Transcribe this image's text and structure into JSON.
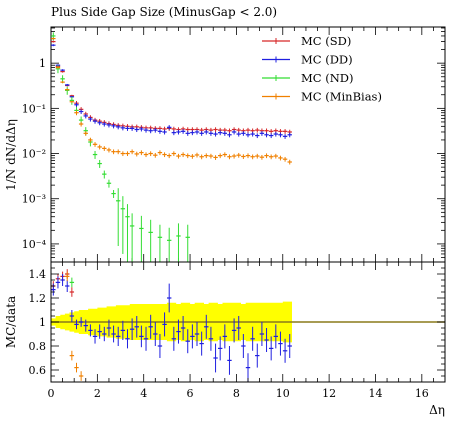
{
  "chart_data": [
    {
      "type": "scatter",
      "title": "Plus Side Gap Size (MinusGap < 2.0)",
      "ylabel": "1/N dN/dΔη",
      "xlim": [
        0,
        17
      ],
      "ylim_log10": [
        -4.4,
        0.8
      ],
      "yscale": "log",
      "yticks": [
        {
          "value": 1,
          "label": "1"
        },
        {
          "value": 0.1,
          "label": "10⁻¹"
        },
        {
          "value": 0.01,
          "label": "10⁻²"
        },
        {
          "value": 0.001,
          "label": "10⁻³"
        },
        {
          "value": 0.0001,
          "label": "10⁻⁴"
        }
      ],
      "legend_position": "top-right",
      "series": [
        {
          "name": "MC (SD)",
          "color": "#d62728",
          "x": [
            0.1,
            0.3,
            0.5,
            0.7,
            0.9,
            1.1,
            1.3,
            1.5,
            1.7,
            1.9,
            2.1,
            2.3,
            2.5,
            2.7,
            2.9,
            3.1,
            3.3,
            3.5,
            3.7,
            3.9,
            4.1,
            4.3,
            4.5,
            4.7,
            4.9,
            5.1,
            5.3,
            5.5,
            5.7,
            5.9,
            6.1,
            6.3,
            6.5,
            6.7,
            6.9,
            7.1,
            7.3,
            7.5,
            7.7,
            7.9,
            8.1,
            8.3,
            8.5,
            8.7,
            8.9,
            9.1,
            9.3,
            9.5,
            9.7,
            9.9,
            10.1,
            10.3
          ],
          "y": [
            3.0,
            0.85,
            0.65,
            0.32,
            0.19,
            0.13,
            0.095,
            0.075,
            0.063,
            0.055,
            0.052,
            0.049,
            0.046,
            0.044,
            0.042,
            0.041,
            0.04,
            0.039,
            0.039,
            0.038,
            0.037,
            0.037,
            0.036,
            0.036,
            0.035,
            0.036,
            0.035,
            0.034,
            0.035,
            0.034,
            0.034,
            0.034,
            0.033,
            0.034,
            0.033,
            0.034,
            0.033,
            0.033,
            0.032,
            0.034,
            0.033,
            0.032,
            0.033,
            0.032,
            0.033,
            0.032,
            0.032,
            0.031,
            0.032,
            0.031,
            0.031,
            0.03
          ]
        },
        {
          "name": "MC (DD)",
          "color": "#1f1fe0",
          "x": [
            0.1,
            0.3,
            0.5,
            0.7,
            0.9,
            1.1,
            1.3,
            1.5,
            1.7,
            1.9,
            2.1,
            2.3,
            2.5,
            2.7,
            2.9,
            3.1,
            3.3,
            3.5,
            3.7,
            3.9,
            4.1,
            4.3,
            4.5,
            4.7,
            4.9,
            5.1,
            5.3,
            5.5,
            5.7,
            5.9,
            6.1,
            6.3,
            6.5,
            6.7,
            6.9,
            7.1,
            7.3,
            7.5,
            7.7,
            7.9,
            8.1,
            8.3,
            8.5,
            8.7,
            8.9,
            9.1,
            9.3,
            9.5,
            9.7,
            9.9,
            10.1,
            10.3
          ],
          "y": [
            2.5,
            0.9,
            0.7,
            0.33,
            0.18,
            0.12,
            0.085,
            0.068,
            0.058,
            0.052,
            0.048,
            0.045,
            0.043,
            0.041,
            0.039,
            0.037,
            0.036,
            0.036,
            0.034,
            0.035,
            0.033,
            0.032,
            0.033,
            0.031,
            0.03,
            0.038,
            0.029,
            0.03,
            0.031,
            0.028,
            0.029,
            0.03,
            0.028,
            0.03,
            0.028,
            0.027,
            0.029,
            0.028,
            0.026,
            0.03,
            0.027,
            0.028,
            0.026,
            0.027,
            0.025,
            0.028,
            0.026,
            0.025,
            0.027,
            0.026,
            0.024,
            0.026
          ]
        },
        {
          "name": "MC (ND)",
          "color": "#33dd33",
          "x": [
            0.1,
            0.3,
            0.5,
            0.7,
            0.9,
            1.1,
            1.3,
            1.5,
            1.7,
            1.9,
            2.1,
            2.3,
            2.5,
            2.7,
            2.9,
            3.1,
            3.3,
            3.5,
            3.9,
            4.3,
            4.7,
            5.1,
            5.5,
            5.9
          ],
          "y": [
            4.0,
            0.75,
            0.45,
            0.25,
            0.15,
            0.09,
            0.055,
            0.032,
            0.018,
            0.0095,
            0.006,
            0.0035,
            0.0022,
            0.0013,
            0.0009,
            0.0006,
            0.0004,
            0.00025,
            0.00022,
            0.00018,
            0.00014,
            0.00012,
            0.00015,
            0.00014
          ]
        },
        {
          "name": "MC (MinBias)",
          "color": "#f08000",
          "x": [
            0.1,
            0.3,
            0.5,
            0.7,
            0.9,
            1.1,
            1.3,
            1.5,
            1.7,
            1.9,
            2.1,
            2.3,
            2.5,
            2.7,
            2.9,
            3.1,
            3.3,
            3.5,
            3.7,
            3.9,
            4.1,
            4.3,
            4.5,
            4.7,
            4.9,
            5.1,
            5.3,
            5.5,
            5.7,
            5.9,
            6.1,
            6.3,
            6.5,
            6.7,
            6.9,
            7.1,
            7.3,
            7.5,
            7.7,
            7.9,
            8.1,
            8.3,
            8.5,
            8.7,
            8.9,
            9.1,
            9.3,
            9.5,
            9.7,
            9.9,
            10.1,
            10.3
          ],
          "y": [
            3.5,
            0.8,
            0.38,
            0.26,
            0.14,
            0.08,
            0.045,
            0.028,
            0.02,
            0.016,
            0.014,
            0.013,
            0.012,
            0.011,
            0.011,
            0.01,
            0.01,
            0.011,
            0.0098,
            0.0105,
            0.0095,
            0.01,
            0.0092,
            0.0105,
            0.0095,
            0.009,
            0.01,
            0.0088,
            0.0095,
            0.009,
            0.0087,
            0.0093,
            0.0085,
            0.009,
            0.0088,
            0.0082,
            0.009,
            0.0095,
            0.0085,
            0.0088,
            0.0092,
            0.0086,
            0.009,
            0.0085,
            0.0088,
            0.0083,
            0.009,
            0.0085,
            0.0088,
            0.008,
            0.0075,
            0.0065
          ]
        }
      ]
    },
    {
      "type": "scatter",
      "ylabel": "MC/data",
      "xlabel": "Δη",
      "xlim": [
        0,
        17
      ],
      "ylim": [
        0.5,
        1.5
      ],
      "xticks": [
        0,
        2,
        4,
        6,
        8,
        10,
        12,
        14,
        16
      ],
      "yticks": [
        0.6,
        0.8,
        1,
        1.2,
        1.4
      ],
      "reference_line": 1,
      "band": {
        "color": "#ffff00",
        "x": [
          0.1,
          0.3,
          0.5,
          0.7,
          0.9,
          1.1,
          1.3,
          1.5,
          1.7,
          1.9,
          2.1,
          2.3,
          2.5,
          2.7,
          2.9,
          3.1,
          3.3,
          3.5,
          3.7,
          3.9,
          4.1,
          4.3,
          4.5,
          4.7,
          4.9,
          5.1,
          5.3,
          5.5,
          5.7,
          5.9,
          6.1,
          6.3,
          6.5,
          6.7,
          6.9,
          7.1,
          7.3,
          7.5,
          7.7,
          7.9,
          8.1,
          8.3,
          8.5,
          8.7,
          8.9,
          9.1,
          9.3,
          9.5,
          9.7,
          9.9,
          10.1,
          10.3
        ],
        "halfwidth": [
          0.03,
          0.05,
          0.06,
          0.07,
          0.08,
          0.09,
          0.1,
          0.1,
          0.11,
          0.11,
          0.12,
          0.12,
          0.13,
          0.13,
          0.14,
          0.14,
          0.14,
          0.15,
          0.15,
          0.15,
          0.15,
          0.15,
          0.15,
          0.15,
          0.15,
          0.16,
          0.16,
          0.15,
          0.16,
          0.16,
          0.15,
          0.16,
          0.16,
          0.15,
          0.16,
          0.16,
          0.15,
          0.16,
          0.16,
          0.16,
          0.16,
          0.15,
          0.16,
          0.16,
          0.16,
          0.16,
          0.16,
          0.16,
          0.16,
          0.16,
          0.17,
          0.17
        ]
      },
      "series": [
        {
          "name": "MC (SD)",
          "color": "#d62728",
          "x": [
            0.1,
            0.3,
            0.5,
            0.7,
            0.9
          ],
          "y": [
            1.3,
            1.36,
            1.38,
            1.4,
            1.25
          ]
        },
        {
          "name": "MC (DD)",
          "color": "#1f1fe0",
          "x": [
            0.1,
            0.3,
            0.5,
            0.7,
            0.9,
            1.1,
            1.3,
            1.5,
            1.7,
            1.9,
            2.1,
            2.3,
            2.5,
            2.7,
            2.9,
            3.1,
            3.3,
            3.5,
            3.7,
            3.9,
            4.1,
            4.3,
            4.5,
            4.7,
            4.9,
            5.1,
            5.3,
            5.5,
            5.7,
            5.9,
            6.1,
            6.3,
            6.5,
            6.7,
            6.9,
            7.1,
            7.3,
            7.5,
            7.7,
            7.9,
            8.1,
            8.3,
            8.5,
            8.7,
            8.9,
            9.1,
            9.3,
            9.5,
            9.7,
            9.9,
            10.1,
            10.3
          ],
          "y": [
            1.27,
            1.33,
            1.35,
            1.3,
            1.05,
            0.98,
            1.0,
            0.97,
            0.93,
            0.88,
            0.92,
            0.9,
            0.95,
            0.9,
            0.88,
            0.93,
            0.86,
            0.94,
            0.96,
            0.88,
            0.86,
            0.96,
            0.9,
            0.8,
            0.98,
            1.2,
            0.86,
            0.92,
            0.95,
            0.84,
            0.88,
            0.9,
            0.82,
            0.96,
            0.86,
            0.7,
            0.78,
            0.88,
            0.68,
            0.93,
            0.95,
            0.8,
            0.62,
            0.86,
            0.72,
            0.9,
            0.85,
            0.78,
            0.88,
            0.82,
            0.76,
            0.8
          ],
          "err": [
            0.05,
            0.05,
            0.05,
            0.05,
            0.05,
            0.04,
            0.04,
            0.05,
            0.05,
            0.06,
            0.06,
            0.06,
            0.07,
            0.07,
            0.08,
            0.08,
            0.08,
            0.09,
            0.09,
            0.09,
            0.1,
            0.1,
            0.1,
            0.1,
            0.1,
            0.12,
            0.1,
            0.1,
            0.1,
            0.1,
            0.1,
            0.1,
            0.1,
            0.1,
            0.1,
            0.12,
            0.1,
            0.1,
            0.12,
            0.1,
            0.1,
            0.1,
            0.12,
            0.1,
            0.1,
            0.1,
            0.1,
            0.1,
            0.1,
            0.1,
            0.1,
            0.1
          ]
        },
        {
          "name": "MC (ND)",
          "color": "#33dd33",
          "x": [
            0.9
          ],
          "y": [
            1.33
          ]
        },
        {
          "name": "MC (MinBias)",
          "color": "#f08000",
          "x": [
            0.7,
            0.9,
            1.1,
            1.3
          ],
          "y": [
            1.38,
            0.72,
            0.62,
            0.55
          ]
        }
      ]
    }
  ]
}
